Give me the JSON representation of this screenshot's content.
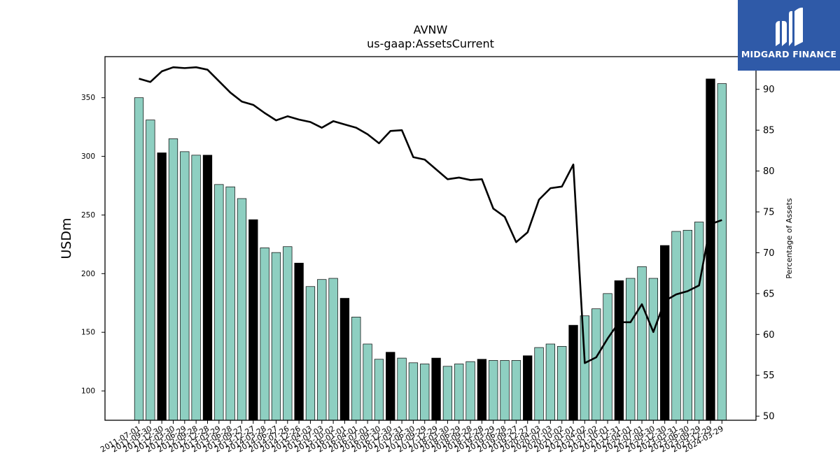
{
  "brand": {
    "name": "MIDGARD FINANCE",
    "bg_color": "#2f5aa8"
  },
  "chart_data": {
    "type": "bar",
    "title": "AVNW",
    "subtitle": "us-gaap:AssetsCurrent",
    "ylabel": "USDm",
    "y2label": "Percentage of Assets",
    "ylim": [
      75,
      385
    ],
    "y2lim": [
      49.5,
      94
    ],
    "yticks": [
      100,
      150,
      200,
      250,
      300,
      350
    ],
    "y2ticks": [
      50,
      55,
      60,
      65,
      70,
      75,
      80,
      85,
      90
    ],
    "colors": {
      "quarter": "#8ecfc1",
      "year_end": "#000000",
      "line": "#000000"
    },
    "categories": [
      "2011-07-01",
      "2011-09-30",
      "2011-12-30",
      "2012-03-30",
      "2012-06-29",
      "2012-09-28",
      "2012-12-28",
      "2013-03-29",
      "2013-06-28",
      "2013-09-27",
      "2013-12-27",
      "2014-03-28",
      "2014-06-27",
      "2014-07-26",
      "2014-12-26",
      "2015-04-03",
      "2015-07-03",
      "2015-10-02",
      "2016-01-01",
      "2016-04-01",
      "2016-07-01",
      "2016-09-30",
      "2016-12-30",
      "2017-03-31",
      "2017-06-30",
      "2017-09-29",
      "2017-12-29",
      "2018-03-30",
      "2018-06-29",
      "2018-09-28",
      "2018-12-28",
      "2019-03-29",
      "2019-06-28",
      "2019-09-27",
      "2019-12-27",
      "2020-04-03",
      "2020-07-03",
      "2020-10-02",
      "2021-01-01",
      "2021-04-02",
      "2021-07-02",
      "2021-10-01",
      "2021-12-31",
      "2022-04-01",
      "2022-07-01",
      "2022-09-30",
      "2022-12-30",
      "2023-03-31",
      "2023-06-30",
      "2023-09-29",
      "2023-12-29",
      "2024-03-29"
    ],
    "series": [
      {
        "type": "bar",
        "values": [
          350,
          331,
          303,
          315,
          304,
          301,
          301,
          276,
          274,
          264,
          246,
          222,
          218,
          223,
          209,
          189,
          195,
          196,
          179,
          163,
          140,
          127,
          133,
          128,
          124,
          123,
          128,
          121,
          123,
          125,
          127,
          126,
          126,
          126,
          130,
          137,
          140,
          138,
          156,
          164,
          170,
          183,
          194,
          196,
          206,
          196,
          224,
          236,
          237,
          244,
          366,
          362
        ],
        "year_end": [
          false,
          false,
          true,
          false,
          false,
          false,
          true,
          false,
          false,
          false,
          true,
          false,
          false,
          false,
          true,
          false,
          false,
          false,
          true,
          false,
          false,
          false,
          true,
          false,
          false,
          false,
          true,
          false,
          false,
          false,
          true,
          false,
          false,
          false,
          true,
          false,
          false,
          false,
          true,
          false,
          false,
          false,
          true,
          false,
          false,
          false,
          true,
          false,
          false,
          false,
          true,
          false
        ]
      },
      {
        "type": "line",
        "axis": "right",
        "values": [
          91.3,
          90.9,
          92.2,
          92.7,
          92.6,
          92.7,
          92.4,
          91.0,
          89.6,
          88.5,
          88.1,
          87.1,
          86.2,
          86.7,
          86.3,
          86.0,
          85.3,
          86.1,
          85.7,
          85.3,
          84.5,
          83.4,
          84.9,
          85.0,
          81.7,
          81.4,
          80.2,
          79.0,
          79.2,
          78.9,
          79.0,
          75.4,
          74.4,
          71.3,
          72.5,
          76.5,
          77.9,
          78.1,
          80.8,
          56.5,
          57.2,
          59.5,
          61.5,
          61.5,
          63.7,
          60.3,
          64.1,
          64.9,
          65.3,
          66.0,
          73.5,
          74.0
        ]
      }
    ]
  }
}
